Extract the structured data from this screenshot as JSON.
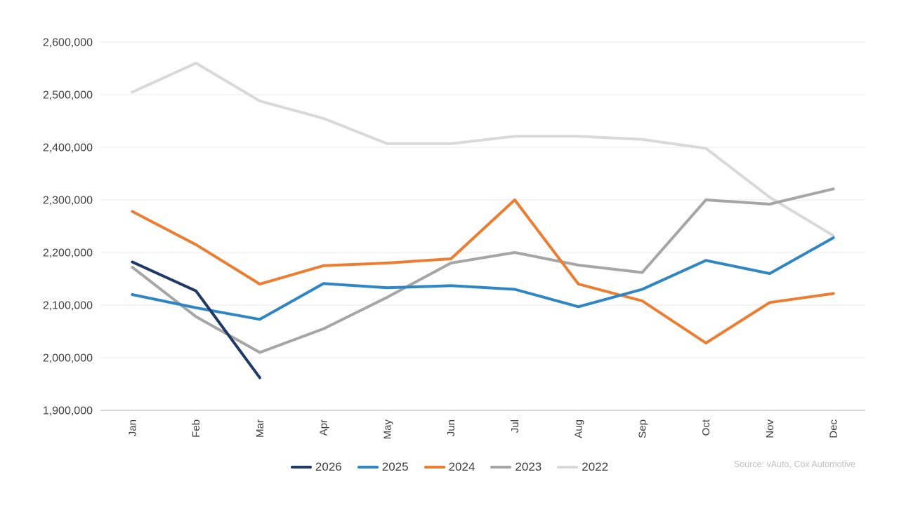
{
  "chart_data": {
    "type": "line",
    "title": "",
    "xlabel": "",
    "ylabel": "",
    "grid": true,
    "legend_position": "bottom",
    "categories": [
      "Jan",
      "Feb",
      "Mar",
      "Apr",
      "May",
      "Jun",
      "Jul",
      "Aug",
      "Sep",
      "Oct",
      "Nov",
      "Dec"
    ],
    "series": [
      {
        "name": "2022",
        "color": "#D9D9D9",
        "values": [
          2505000,
          2560000,
          2488000,
          2455000,
          2407000,
          2407000,
          2421000,
          2421000,
          2415000,
          2398000,
          2305000,
          2232000
        ]
      },
      {
        "name": "2023",
        "color": "#A6A6A6",
        "values": [
          2172000,
          2078000,
          2010000,
          2055000,
          2115000,
          2180000,
          2200000,
          2176000,
          2162000,
          2300000,
          2292000,
          2321000
        ]
      },
      {
        "name": "2024",
        "color": "#ED7D31",
        "values": [
          2278000,
          2215000,
          2140000,
          2175000,
          2180000,
          2188000,
          2300000,
          2140000,
          2108000,
          2028000,
          2105000,
          2122000
        ]
      },
      {
        "name": "2025",
        "color": "#2E86C5",
        "values": [
          2120000,
          2095000,
          2073000,
          2141000,
          2133000,
          2137000,
          2130000,
          2097000,
          2130000,
          2185000,
          2160000,
          2228000
        ]
      },
      {
        "name": "2026",
        "color": "#203864",
        "values": [
          2182000,
          2127000,
          1962000
        ]
      }
    ],
    "legend_order": [
      "2026",
      "2025",
      "2024",
      "2023",
      "2022"
    ],
    "y_axis": {
      "min": 1900000,
      "max": 2600000,
      "step": 100000,
      "tick_labels": [
        "1,900,000",
        "2,000,000",
        "2,100,000",
        "2,200,000",
        "2,300,000",
        "2,400,000",
        "2,500,000",
        "2,600,000"
      ]
    }
  },
  "source_note": "Source: vAuto, Cox Automotive",
  "colors": {
    "background": "#FFFFFF",
    "gridline": "#E8E8E8",
    "axis_line": "#C9C9C9",
    "axis_text": "#404040",
    "legend_text": "#404040",
    "source_text": "#C2C2C2"
  }
}
